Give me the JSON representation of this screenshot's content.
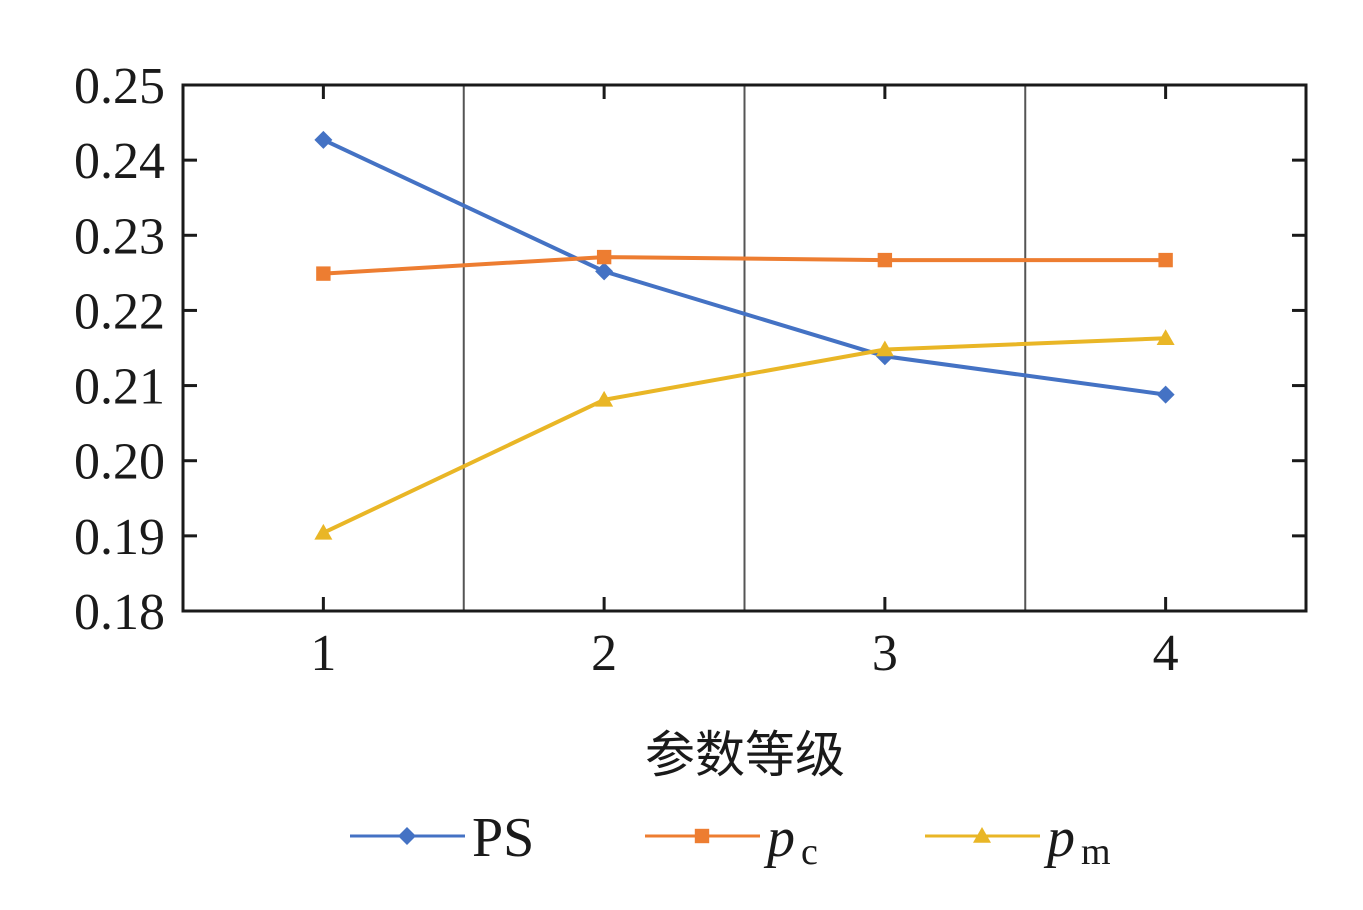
{
  "chart_data": {
    "type": "line",
    "title": "",
    "xlabel": "参数等级",
    "ylabel": "",
    "x": [
      1,
      2,
      3,
      4
    ],
    "xlim": [
      0.5,
      4.5
    ],
    "ylim": [
      0.18,
      0.25
    ],
    "x_ticks": [
      "1",
      "2",
      "3",
      "4"
    ],
    "y_ticks": [
      "0.18",
      "0.19",
      "0.20",
      "0.21",
      "0.22",
      "0.23",
      "0.24",
      "0.25"
    ],
    "grid": "vertical separators between levels",
    "legend_position": "bottom",
    "series": [
      {
        "name": "PS",
        "legend_main": "PS",
        "legend_sub": "",
        "marker": "diamond",
        "color": "#4472c4",
        "values": [
          0.2427,
          0.2252,
          0.2139,
          0.2088
        ]
      },
      {
        "name": "pc",
        "legend_main": "p",
        "legend_sub": "c",
        "marker": "square",
        "color": "#ed7d31",
        "values": [
          0.2249,
          0.2271,
          0.2267,
          0.2267
        ]
      },
      {
        "name": "pm",
        "legend_main": "p",
        "legend_sub": "m",
        "marker": "triangle",
        "color": "#e9b626",
        "values": [
          0.1904,
          0.2081,
          0.2148,
          0.2163
        ]
      }
    ]
  }
}
